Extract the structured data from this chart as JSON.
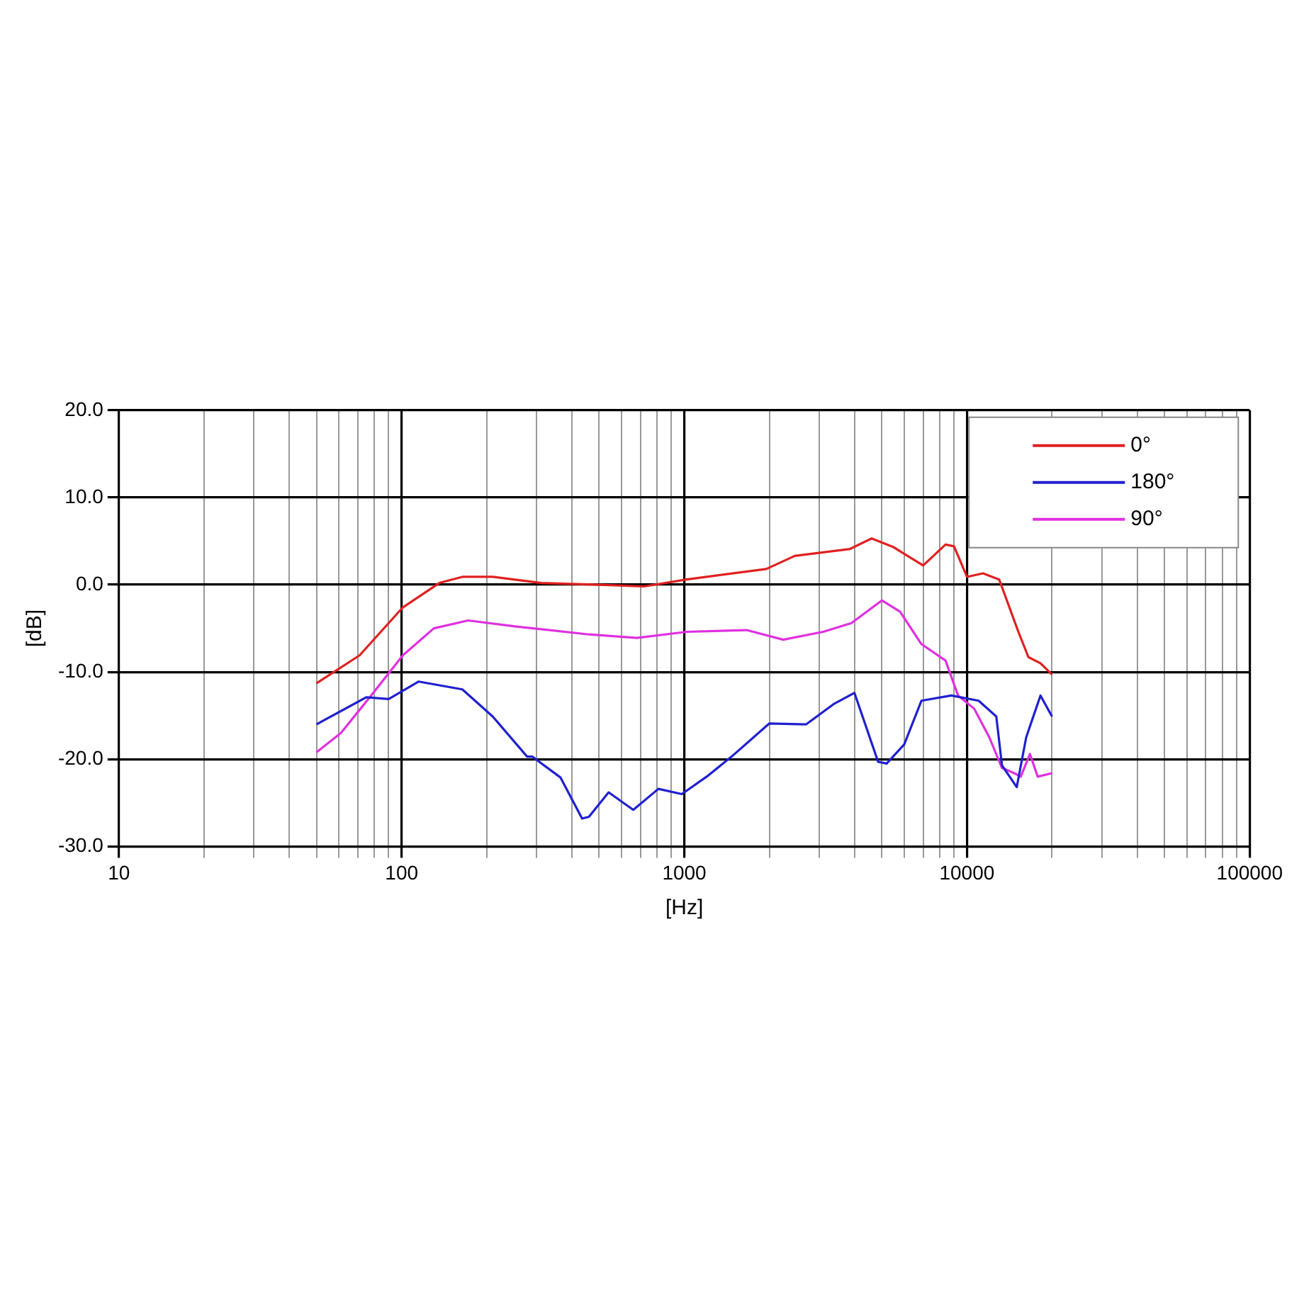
{
  "chart_data": {
    "type": "line",
    "xlabel": "[Hz]",
    "ylabel": "[dB]",
    "log": "x",
    "grid": true,
    "legend": "top right",
    "marker": "none",
    "line_style": "solid",
    "xlim": [
      10,
      100000
    ],
    "ylim": [
      -30,
      20
    ],
    "xticks": [
      10,
      {
        "value": 20,
        "label": null
      },
      {
        "value": 30,
        "label": null
      },
      {
        "value": 40,
        "label": null
      },
      {
        "value": 50,
        "label": null
      },
      {
        "value": 60,
        "label": null
      },
      {
        "value": 70,
        "label": null
      },
      {
        "value": 80,
        "label": null
      },
      {
        "value": 90,
        "label": null
      },
      100,
      {
        "value": 200,
        "label": null
      },
      {
        "value": 300,
        "label": null
      },
      {
        "value": 400,
        "label": null
      },
      {
        "value": 500,
        "label": null
      },
      {
        "value": 600,
        "label": null
      },
      {
        "value": 700,
        "label": null
      },
      {
        "value": 800,
        "label": null
      },
      {
        "value": 900,
        "label": null
      },
      1000,
      {
        "value": 2000,
        "label": null
      },
      {
        "value": 3000,
        "label": null
      },
      {
        "value": 4000,
        "label": null
      },
      {
        "value": 5000,
        "label": null
      },
      {
        "value": 6000,
        "label": null
      },
      {
        "value": 7000,
        "label": null
      },
      {
        "value": 8000,
        "label": null
      },
      {
        "value": 9000,
        "label": null
      },
      10000,
      {
        "value": 20000,
        "label": null
      },
      {
        "value": 30000,
        "label": null
      },
      {
        "value": 40000,
        "label": null
      },
      {
        "value": 50000,
        "label": null
      },
      {
        "value": 60000,
        "label": null
      },
      {
        "value": 70000,
        "label": null
      },
      {
        "value": 80000,
        "label": null
      },
      {
        "value": 90000,
        "label": null
      },
      100000
    ],
    "yticks": [
      {
        "value": -30,
        "label": "-30.0"
      },
      {
        "value": -20,
        "label": "-20.0"
      },
      {
        "value": -10,
        "label": "-10.0"
      },
      {
        "value": 0,
        "label": "0.0"
      },
      {
        "value": 10,
        "label": "10.0"
      },
      {
        "value": 20,
        "label": "20.0"
      }
    ],
    "series": [
      {
        "name": "0°",
        "color": "#e02020",
        "x": [
          50,
          71,
          101,
          136,
          164,
          210,
          312,
          500,
          720,
          1020,
          1950,
          2460,
          3860,
          4600,
          5500,
          7000,
          8400,
          9000,
          10000,
          11400,
          13000,
          15200,
          16500,
          18200,
          20000
        ],
        "values": [
          -11.3,
          -8.1,
          -2.6,
          0.2,
          0.9,
          0.9,
          0.2,
          0,
          -0.2,
          0.6,
          1.8,
          3.3,
          4.1,
          5.3,
          4.3,
          2.2,
          4.6,
          4.4,
          0.9,
          1.3,
          0.6,
          -5.4,
          -8.3,
          -9,
          -10.3
        ]
      },
      {
        "name": "180°",
        "color": "#2020d0",
        "x": [
          50,
          75,
          90,
          115,
          164,
          210,
          278,
          290,
          365,
          435,
          460,
          540,
          660,
          810,
          980,
          1200,
          1470,
          2000,
          2700,
          3370,
          4000,
          4850,
          5200,
          6000,
          6900,
          8800,
          11000,
          12700,
          13300,
          15000,
          16200,
          18200,
          20000
        ],
        "values": [
          -16,
          -12.9,
          -13.1,
          -11.1,
          -12,
          -15.1,
          -19.7,
          -19.7,
          -22.1,
          -26.8,
          -26.6,
          -23.8,
          -25.8,
          -23.4,
          -24,
          -22,
          -19.7,
          -15.9,
          -16,
          -13.7,
          -12.4,
          -20.3,
          -20.5,
          -18.3,
          -13.3,
          -12.7,
          -13.3,
          -15.1,
          -20.7,
          -23.2,
          -17.5,
          -12.7,
          -15.1
        ]
      },
      {
        "name": "90°",
        "color": "#e030e0",
        "x": [
          50,
          61,
          78,
          101,
          130,
          172,
          255,
          460,
          680,
          1020,
          1660,
          2240,
          3100,
          3900,
          5000,
          5800,
          6900,
          8400,
          9300,
          10600,
          12000,
          13300,
          14700,
          15500,
          16700,
          17800,
          20000
        ],
        "values": [
          -19.2,
          -17,
          -12.7,
          -8.1,
          -5,
          -4.1,
          -4.8,
          -5.7,
          -6.1,
          -5.4,
          -5.2,
          -6.3,
          -5.4,
          -4.4,
          -1.8,
          -3.1,
          -6.8,
          -8.7,
          -12.7,
          -14.2,
          -17.5,
          -21,
          -21.6,
          -22,
          -19.4,
          -22,
          -21.6
        ]
      }
    ]
  }
}
